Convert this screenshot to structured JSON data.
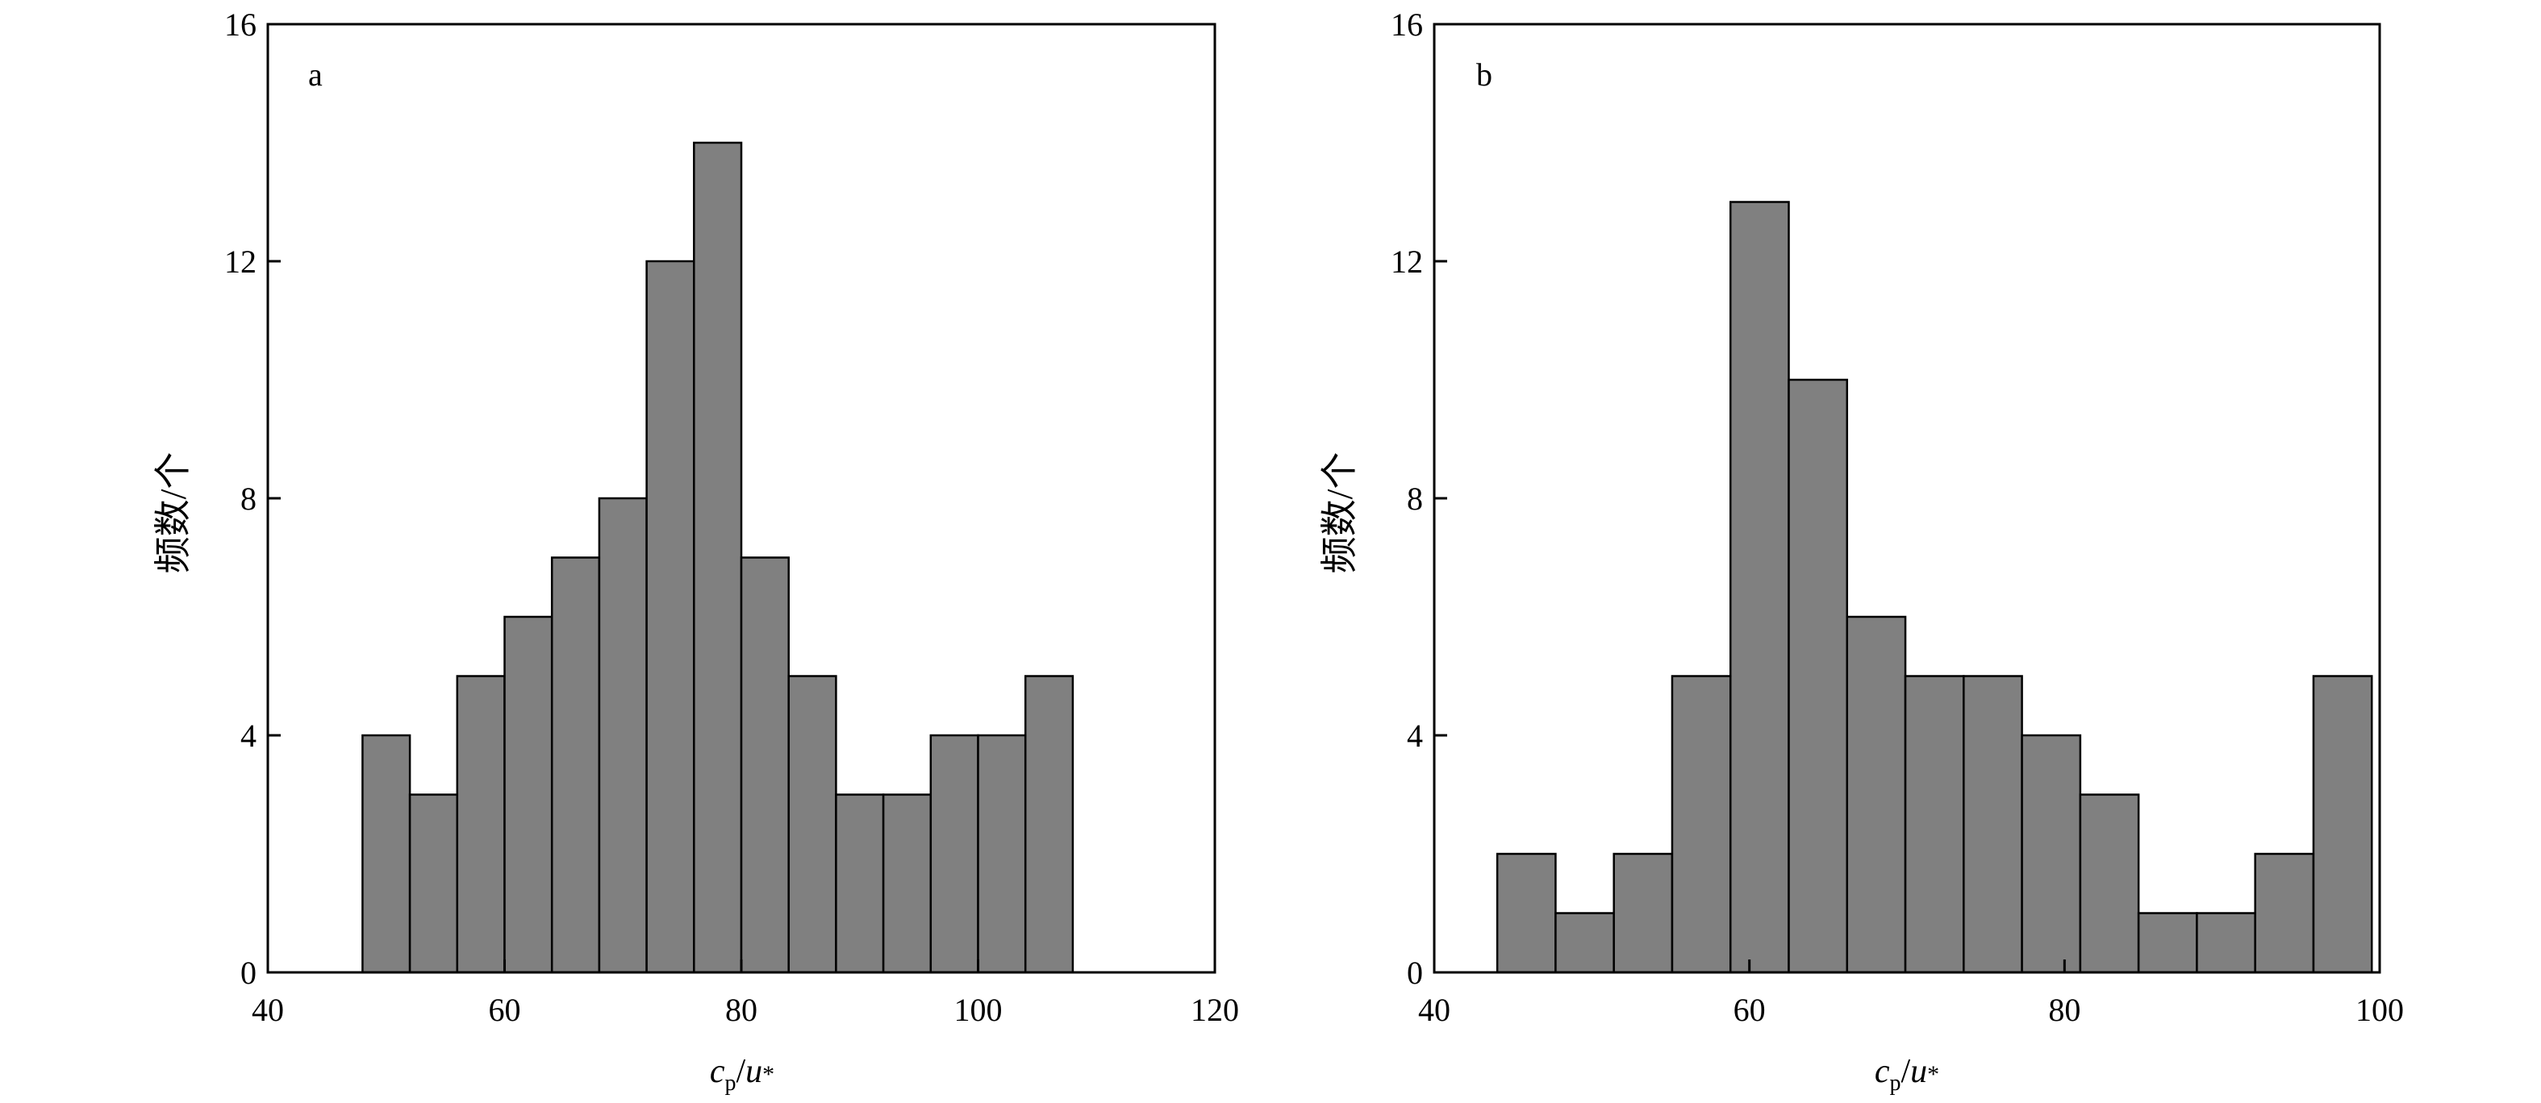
{
  "chart_data": [
    {
      "type": "bar",
      "panel_label": "a",
      "xlabel": "c_p/u_*",
      "ylabel": "频数/个",
      "xlim": [
        40,
        120
      ],
      "ylim": [
        0,
        16
      ],
      "xticks": [
        "40",
        "60",
        "80",
        "100",
        "120"
      ],
      "yticks": [
        "0",
        "4",
        "8",
        "12",
        "16"
      ],
      "bin_edges": [
        48,
        52,
        56,
        60,
        64,
        68,
        72,
        76,
        80,
        84,
        88,
        92,
        96,
        100,
        104,
        108
      ],
      "values": [
        4,
        3,
        5,
        6,
        7,
        8,
        12,
        14,
        7,
        5,
        3,
        3,
        4,
        4,
        5
      ],
      "bar_color": "#808080",
      "grid": false
    },
    {
      "type": "bar",
      "panel_label": "b",
      "xlabel": "c_p/u_*",
      "ylabel": "频数/个",
      "xlim": [
        40,
        100
      ],
      "ylim": [
        0,
        16
      ],
      "xticks": [
        "40",
        "60",
        "80",
        "100"
      ],
      "yticks": [
        "0",
        "4",
        "8",
        "12",
        "16"
      ],
      "bin_edges": [
        44,
        47.7,
        51.4,
        55.1,
        58.8,
        62.5,
        66.2,
        69.9,
        73.6,
        77.3,
        81,
        84.7,
        88.4,
        92.1,
        95.8,
        99.5
      ],
      "values": [
        2,
        1,
        2,
        5,
        13,
        10,
        6,
        5,
        5,
        4,
        3,
        1,
        1,
        2,
        5
      ],
      "bar_color": "#808080",
      "grid": false
    }
  ]
}
